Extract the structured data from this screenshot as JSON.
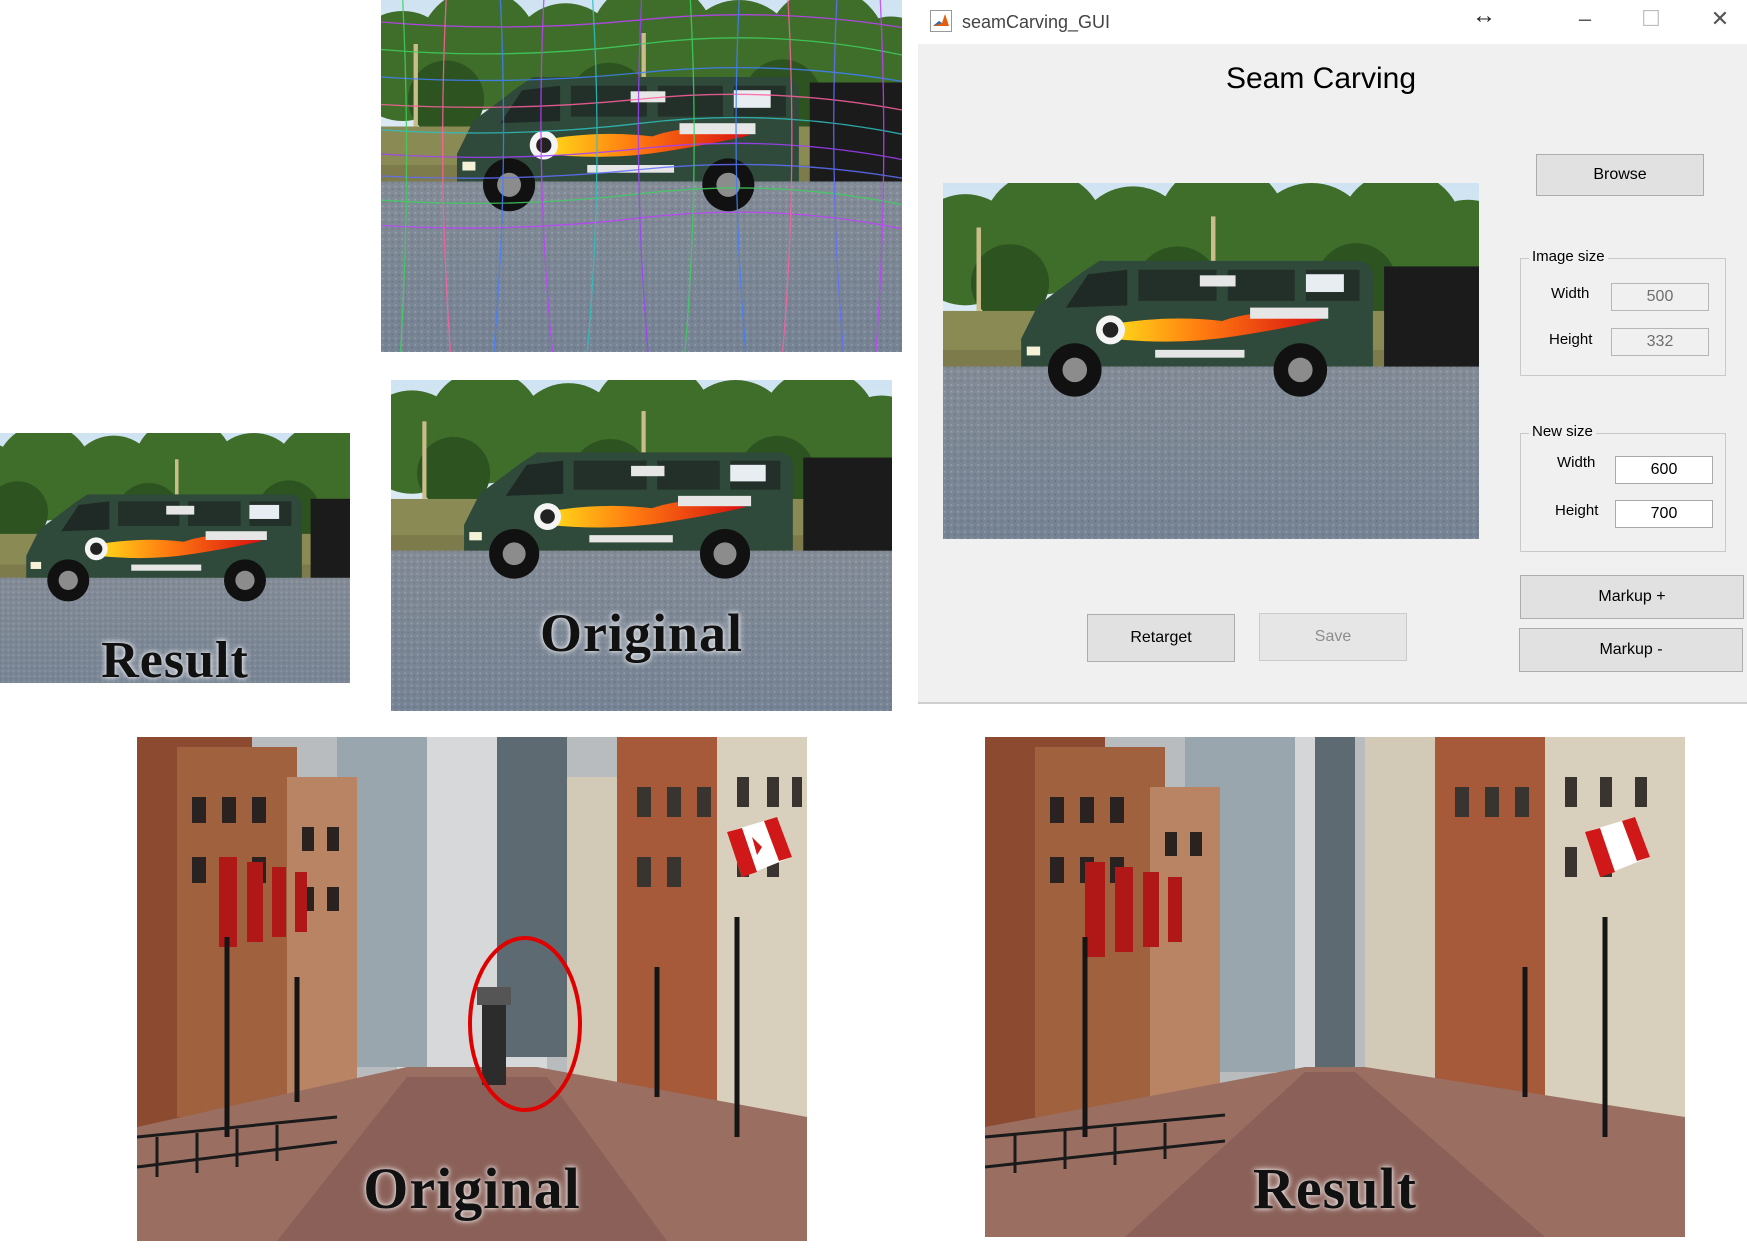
{
  "window": {
    "title": "seamCarving_GUI",
    "heading": "Seam Carving",
    "controls": {
      "resize_glyph": "↔",
      "minimize": "–",
      "maximize": "☐",
      "close": "✕"
    }
  },
  "buttons": {
    "browse": "Browse",
    "retarget": "Retarget",
    "save": "Save",
    "markup_plus": "Markup +",
    "markup_minus": "Markup -"
  },
  "image_size": {
    "title": "Image size",
    "width_label": "Width",
    "width_value": "500",
    "height_label": "Height",
    "height_value": "332"
  },
  "new_size": {
    "title": "New size",
    "width_label": "Width",
    "width_value": "600",
    "height_label": "Height",
    "height_value": "700"
  },
  "captions": {
    "van_result": "Result",
    "van_original": "Original",
    "street_original": "Original",
    "street_result": "Result"
  },
  "colors": {
    "window_bg": "#f0f0f0",
    "van": "#2f4a3a",
    "highlight_circle": "#e00000"
  },
  "icons": {
    "app": "matlab-icon"
  }
}
